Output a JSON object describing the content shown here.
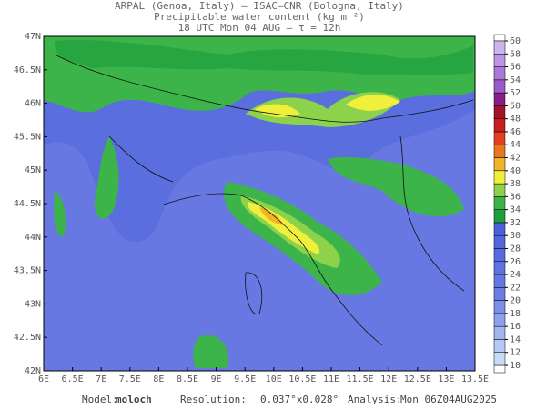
{
  "header": {
    "lines": [
      "ARPAL (Genoa, Italy)  –  ISAC–CNR (Bologna, Italy)",
      "Precipitable water content (kg m⁻²)",
      "18 UTC Mon 04 AUG  –  τ = 12h"
    ]
  },
  "map": {
    "x_labels": [
      "6E",
      "6.5E",
      "7E",
      "7.5E",
      "8E",
      "8.5E",
      "9E",
      "9.5E",
      "10E",
      "10.5E",
      "11E",
      "11.5E",
      "12E",
      "12.5E",
      "13E",
      "13.5E"
    ],
    "y_labels": [
      "42N",
      "42.5N",
      "43N",
      "43.5N",
      "44N",
      "44.5N",
      "45N",
      "45.5N",
      "46N",
      "46.5N",
      "47N"
    ]
  },
  "colorbar": {
    "ticks": [
      10,
      12,
      14,
      16,
      18,
      20,
      22,
      24,
      26,
      28,
      30,
      32,
      34,
      36,
      38,
      40,
      42,
      44,
      46,
      48,
      50,
      52,
      54,
      56,
      58,
      60
    ],
    "colors": [
      "#c8dcf8",
      "#b4c8f4",
      "#a0b4f0",
      "#8ca0ec",
      "#7890e8",
      "#6a7de6",
      "#6478e4",
      "#5e72e2",
      "#586ce0",
      "#5266de",
      "#4c60dc",
      "#1e9e3c",
      "#3cb44a",
      "#8cd24a",
      "#f0f03c",
      "#f0b428",
      "#e87820",
      "#e04020",
      "#c81e1e",
      "#a01428",
      "#8c1e8c",
      "#9a5ac8",
      "#aa78d8",
      "#bc96e4",
      "#ccb4ee"
    ]
  },
  "footer": {
    "model_label": "Model:",
    "model": "moloch",
    "resolution_label": "Resolution:",
    "resolution": "0.037°x0.028°",
    "analysis_label": "Analysis:",
    "analysis": "Mon 06Z04AUG2025"
  }
}
